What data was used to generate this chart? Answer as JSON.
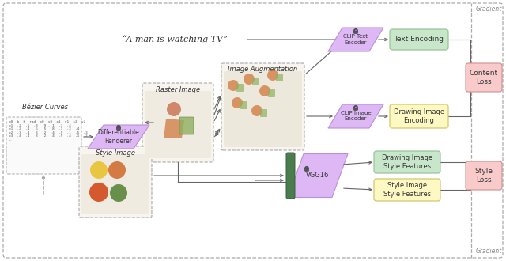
{
  "bg_color": "#ffffff",
  "fig_width": 6.4,
  "fig_height": 3.3,
  "dpi": 100,
  "title_text": "“A man is watching TV”",
  "gradient_top": "Gradient",
  "gradient_bottom": "Gradient",
  "bezier_label": "Bézier Curves",
  "raster_label": "Raster Image",
  "style_label": "Style Image",
  "aug_label": "Image Augmentation",
  "diff_render_label": "Differentiable\nRenderer",
  "clip_text_label": "CLIP Text\nEncoder",
  "clip_image_label": "CLIP Image\nEncoder",
  "vgg16_label": "VGG16",
  "text_enc_label": "Text Encoding",
  "draw_img_enc_label": "Drawing Image\nEncoding",
  "draw_style_label": "Drawing Image\nStyle Features",
  "style_feat_label": "Style Image\nStyle Features",
  "content_loss_label": "Content\nLoss",
  "style_loss_label": "Style\nLoss",
  "purple_light": "#ddb8f5",
  "purple_edge": "#b890d8",
  "green_dark": "#4a7c4e",
  "green_box": "#c8e6c9",
  "green_box_edge": "#90c090",
  "yellow_box": "#fef9c3",
  "yellow_box_edge": "#d0c060",
  "red_box": "#f8caca",
  "red_box_edge": "#d09090",
  "gray_dash": "#aaaaaa",
  "arrow_color": "#666666",
  "text_color": "#333333",
  "lock_body": "#555555",
  "lock_shackle": "#444444"
}
